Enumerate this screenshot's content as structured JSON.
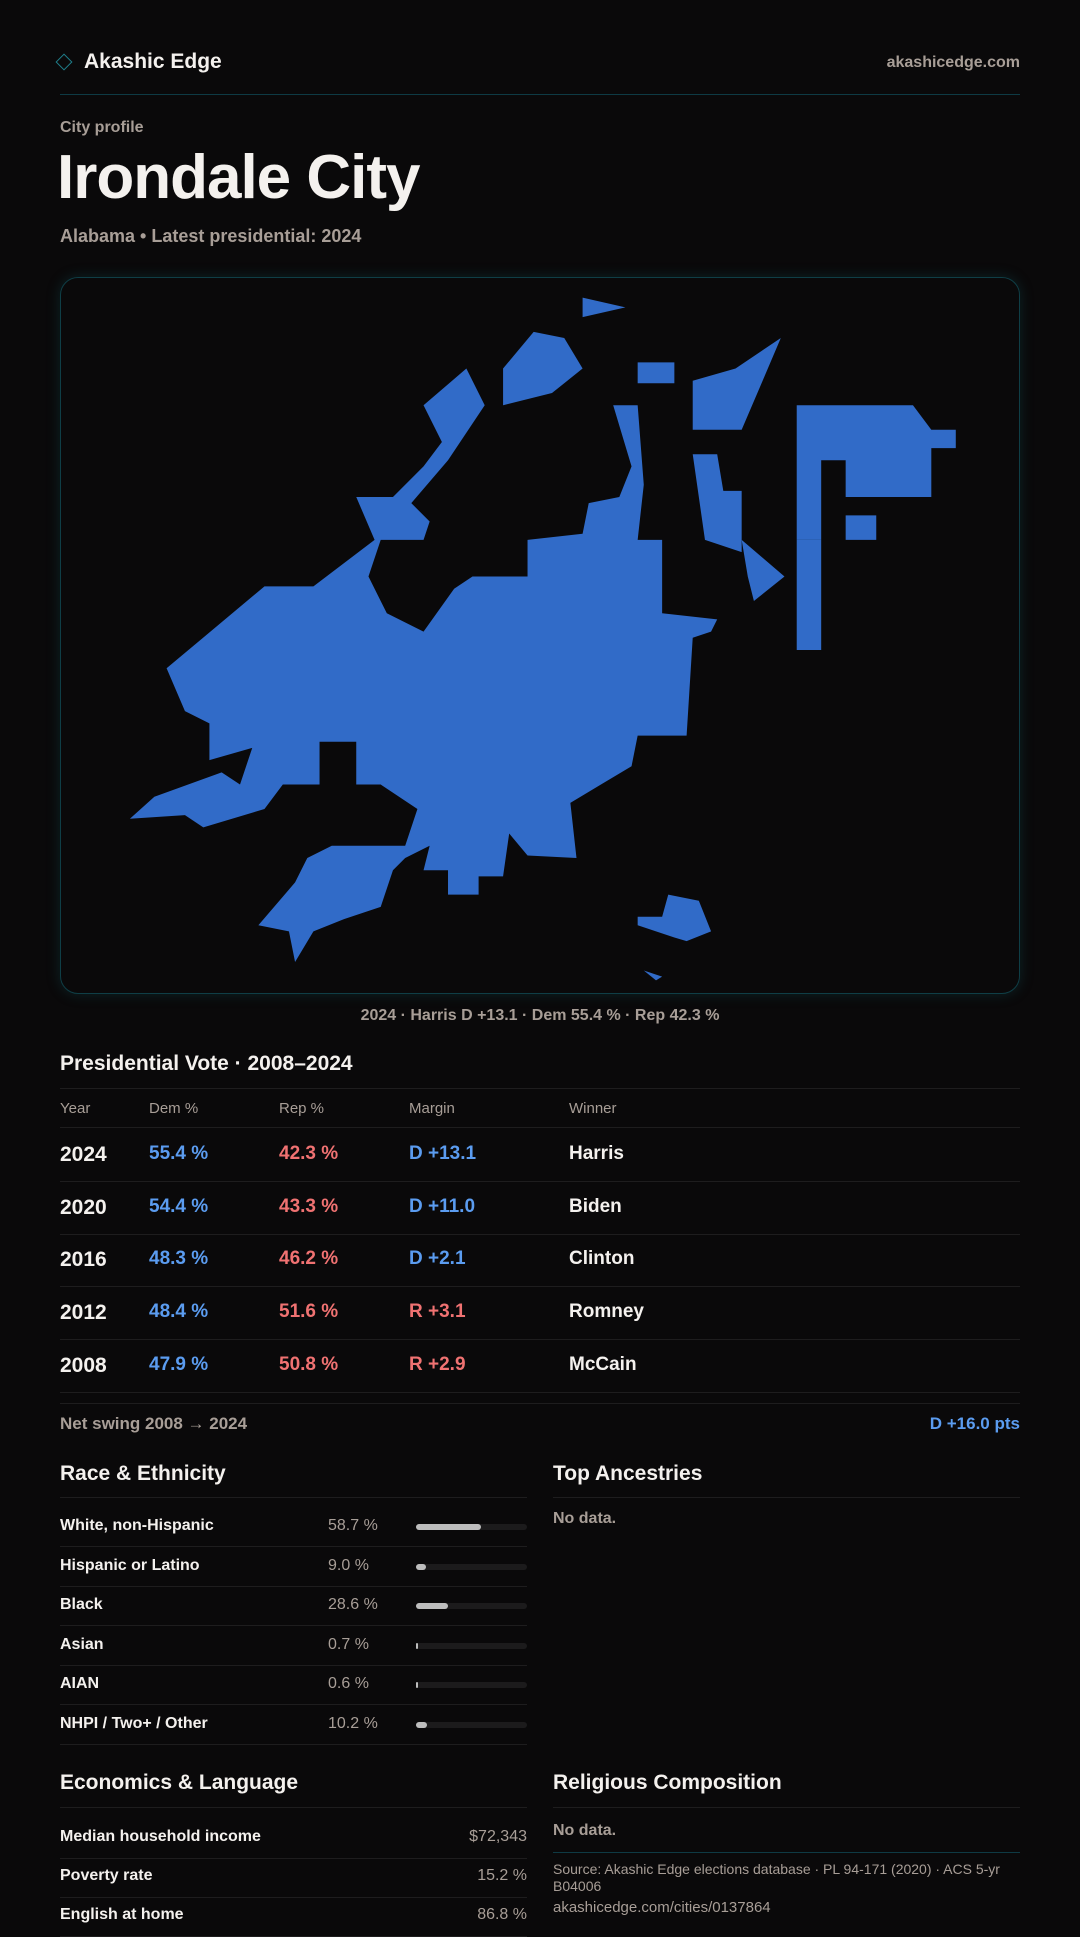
{
  "header": {
    "brand": "Akashic Edge",
    "site": "akashicedge.com"
  },
  "hero": {
    "eyebrow": "City profile",
    "title": "Irondale City",
    "subtitle": "Alabama • Latest presidential: 2024"
  },
  "map": {
    "fill_color": "#316bc8",
    "caption": "2024 · Harris D +13.1 · Dem 55.4 % · Rep 42.3 %"
  },
  "presidential": {
    "title": "Presidential Vote · 2008–2024",
    "columns": [
      "Year",
      "Dem %",
      "Rep %",
      "Margin",
      "Winner"
    ],
    "rows": [
      {
        "year": "2024",
        "dem": "55.4 %",
        "rep": "42.3 %",
        "margin": "D +13.1",
        "party": "D",
        "winner": "Harris"
      },
      {
        "year": "2020",
        "dem": "54.4 %",
        "rep": "43.3 %",
        "margin": "D +11.0",
        "party": "D",
        "winner": "Biden"
      },
      {
        "year": "2016",
        "dem": "48.3 %",
        "rep": "46.2 %",
        "margin": "D +2.1",
        "party": "D",
        "winner": "Clinton"
      },
      {
        "year": "2012",
        "dem": "48.4 %",
        "rep": "51.6 %",
        "margin": "R +3.1",
        "party": "R",
        "winner": "Romney"
      },
      {
        "year": "2008",
        "dem": "47.9 %",
        "rep": "50.8 %",
        "margin": "R +2.9",
        "party": "R",
        "winner": "McCain"
      }
    ],
    "net_swing_label": "Net swing 2008 → 2024",
    "net_swing_value": "D +16.0 pts"
  },
  "race": {
    "title": "Race & Ethnicity",
    "rows": [
      {
        "label": "White, non-Hispanic",
        "value": "58.7 %",
        "pct": 58.7
      },
      {
        "label": "Hispanic or Latino",
        "value": "9.0 %",
        "pct": 9.0
      },
      {
        "label": "Black",
        "value": "28.6 %",
        "pct": 28.6
      },
      {
        "label": "Asian",
        "value": "0.7 %",
        "pct": 0.7
      },
      {
        "label": "AIAN",
        "value": "0.6 %",
        "pct": 0.6
      },
      {
        "label": "NHPI / Two+ / Other",
        "value": "10.2 %",
        "pct": 10.2
      }
    ]
  },
  "ancestries": {
    "title": "Top Ancestries",
    "empty": "No data."
  },
  "economics": {
    "title": "Economics & Language",
    "rows": [
      {
        "label": "Median household income",
        "value": "$72,343"
      },
      {
        "label": "Poverty rate",
        "value": "15.2 %"
      },
      {
        "label": "English at home",
        "value": "86.8 %"
      }
    ]
  },
  "religion": {
    "title": "Religious Composition",
    "empty": "No data."
  },
  "footer": {
    "source": "Source: Akashic Edge elections database · PL 94-171 (2020) · ACS 5-yr B04006",
    "url": "akashicedge.com/cities/0137864"
  }
}
